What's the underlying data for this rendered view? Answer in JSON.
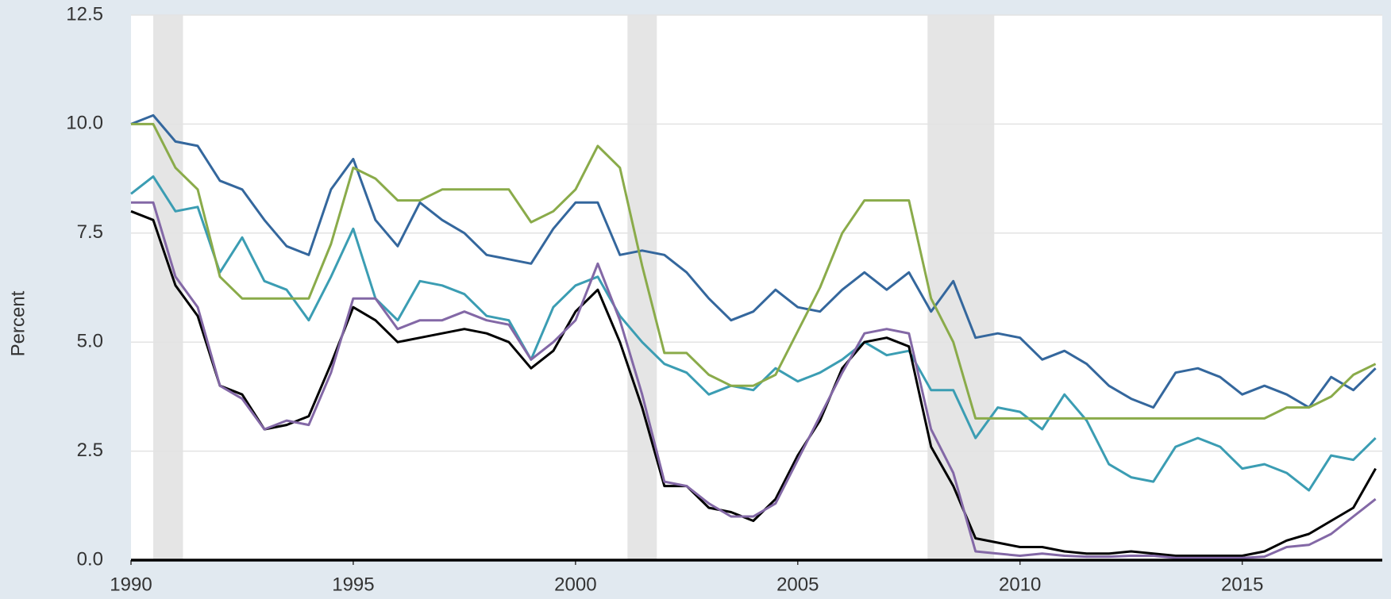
{
  "chart_data": {
    "type": "line",
    "y_label": "Percent",
    "x": [
      1990,
      1990.5,
      1991,
      1991.5,
      1992,
      1992.5,
      1993,
      1993.5,
      1994,
      1994.5,
      1995,
      1995.5,
      1996,
      1996.5,
      1997,
      1997.5,
      1998,
      1998.5,
      1999,
      1999.5,
      2000,
      2000.5,
      2001,
      2001.5,
      2002,
      2002.5,
      2003,
      2003.5,
      2004,
      2004.5,
      2005,
      2005.5,
      2006,
      2006.5,
      2007,
      2007.5,
      2008,
      2008.5,
      2009,
      2009.5,
      2010,
      2010.5,
      2011,
      2011.5,
      2012,
      2012.5,
      2013,
      2013.5,
      2014,
      2014.5,
      2015,
      2015.5,
      2016,
      2016.5,
      2017,
      2017.5,
      2018
    ],
    "series": [
      {
        "color": "#34679d",
        "values": [
          10.0,
          10.2,
          9.6,
          9.5,
          8.7,
          8.5,
          7.8,
          7.2,
          7.0,
          8.5,
          9.2,
          7.8,
          7.2,
          8.2,
          7.8,
          7.5,
          7.0,
          6.9,
          6.8,
          7.6,
          8.2,
          8.2,
          7.0,
          7.1,
          7.0,
          6.6,
          6.0,
          5.5,
          5.7,
          6.2,
          5.8,
          5.7,
          6.2,
          6.6,
          6.2,
          6.6,
          5.7,
          6.4,
          5.1,
          5.2,
          5.1,
          4.6,
          4.8,
          4.5,
          4.0,
          3.7,
          3.5,
          4.3,
          4.4,
          4.2,
          3.8,
          4.0,
          3.8,
          3.5,
          4.2,
          3.9,
          4.4
        ]
      },
      {
        "color": "#3b9db3",
        "values": [
          8.4,
          8.8,
          8.0,
          8.1,
          6.6,
          7.4,
          6.4,
          6.2,
          5.5,
          6.5,
          7.6,
          6.0,
          5.5,
          6.4,
          6.3,
          6.1,
          5.6,
          5.5,
          4.6,
          5.8,
          6.3,
          6.5,
          5.6,
          5.0,
          4.5,
          4.3,
          3.8,
          4.0,
          3.9,
          4.4,
          4.1,
          4.3,
          4.6,
          5.0,
          4.7,
          4.8,
          3.9,
          3.9,
          2.8,
          3.5,
          3.4,
          3.0,
          3.8,
          3.2,
          2.2,
          1.9,
          1.8,
          2.6,
          2.8,
          2.6,
          2.1,
          2.2,
          2.0,
          1.6,
          2.4,
          2.3,
          2.8
        ]
      },
      {
        "color": "#8aab4a",
        "values": [
          10.0,
          10.0,
          9.0,
          8.5,
          6.5,
          6.0,
          6.0,
          6.0,
          6.0,
          7.25,
          9.0,
          8.75,
          8.25,
          8.25,
          8.5,
          8.5,
          8.5,
          8.5,
          7.75,
          8.0,
          8.5,
          9.5,
          9.0,
          6.75,
          4.75,
          4.75,
          4.25,
          4.0,
          4.0,
          4.25,
          5.25,
          6.25,
          7.5,
          8.25,
          8.25,
          8.25,
          6.0,
          5.0,
          3.25,
          3.25,
          3.25,
          3.25,
          3.25,
          3.25,
          3.25,
          3.25,
          3.25,
          3.25,
          3.25,
          3.25,
          3.25,
          3.25,
          3.5,
          3.5,
          3.75,
          4.25,
          4.5
        ]
      },
      {
        "color": "#000000",
        "values": [
          8.0,
          7.8,
          6.3,
          5.6,
          4.0,
          3.8,
          3.0,
          3.1,
          3.3,
          4.5,
          5.8,
          5.5,
          5.0,
          5.1,
          5.2,
          5.3,
          5.2,
          5.0,
          4.4,
          4.8,
          5.7,
          6.2,
          5.0,
          3.5,
          1.7,
          1.7,
          1.2,
          1.1,
          0.9,
          1.4,
          2.4,
          3.2,
          4.4,
          5.0,
          5.1,
          4.9,
          2.6,
          1.7,
          0.5,
          0.4,
          0.3,
          0.3,
          0.2,
          0.15,
          0.15,
          0.2,
          0.15,
          0.1,
          0.1,
          0.1,
          0.1,
          0.2,
          0.45,
          0.6,
          0.9,
          1.2,
          2.1
        ]
      },
      {
        "color": "#8368a6",
        "values": [
          8.2,
          8.2,
          6.5,
          5.8,
          4.0,
          3.7,
          3.0,
          3.2,
          3.1,
          4.3,
          6.0,
          6.0,
          5.3,
          5.5,
          5.5,
          5.7,
          5.5,
          5.4,
          4.6,
          5.0,
          5.5,
          6.8,
          5.5,
          3.8,
          1.8,
          1.7,
          1.3,
          1.0,
          1.0,
          1.3,
          2.3,
          3.3,
          4.3,
          5.2,
          5.3,
          5.2,
          3.0,
          2.0,
          0.2,
          0.15,
          0.1,
          0.15,
          0.1,
          0.08,
          0.08,
          0.1,
          0.1,
          0.05,
          0.05,
          0.05,
          0.05,
          0.08,
          0.3,
          0.35,
          0.6,
          1.0,
          1.4
        ]
      }
    ],
    "shaded_ranges": [
      [
        1990.5,
        1991.17
      ],
      [
        2001.17,
        2001.83
      ],
      [
        2007.92,
        2009.42
      ]
    ],
    "xlim": [
      1990,
      2018.15
    ],
    "xticks": [
      1990,
      1995,
      2000,
      2005,
      2010,
      2015
    ],
    "ylim": [
      0,
      12.5
    ],
    "yticks": [
      {
        "value": 0,
        "label": "0.0"
      },
      2.5,
      {
        "value": 5,
        "label": "5.0"
      },
      7.5,
      {
        "value": 10,
        "label": "10.0"
      },
      12.5
    ],
    "grid": true
  }
}
